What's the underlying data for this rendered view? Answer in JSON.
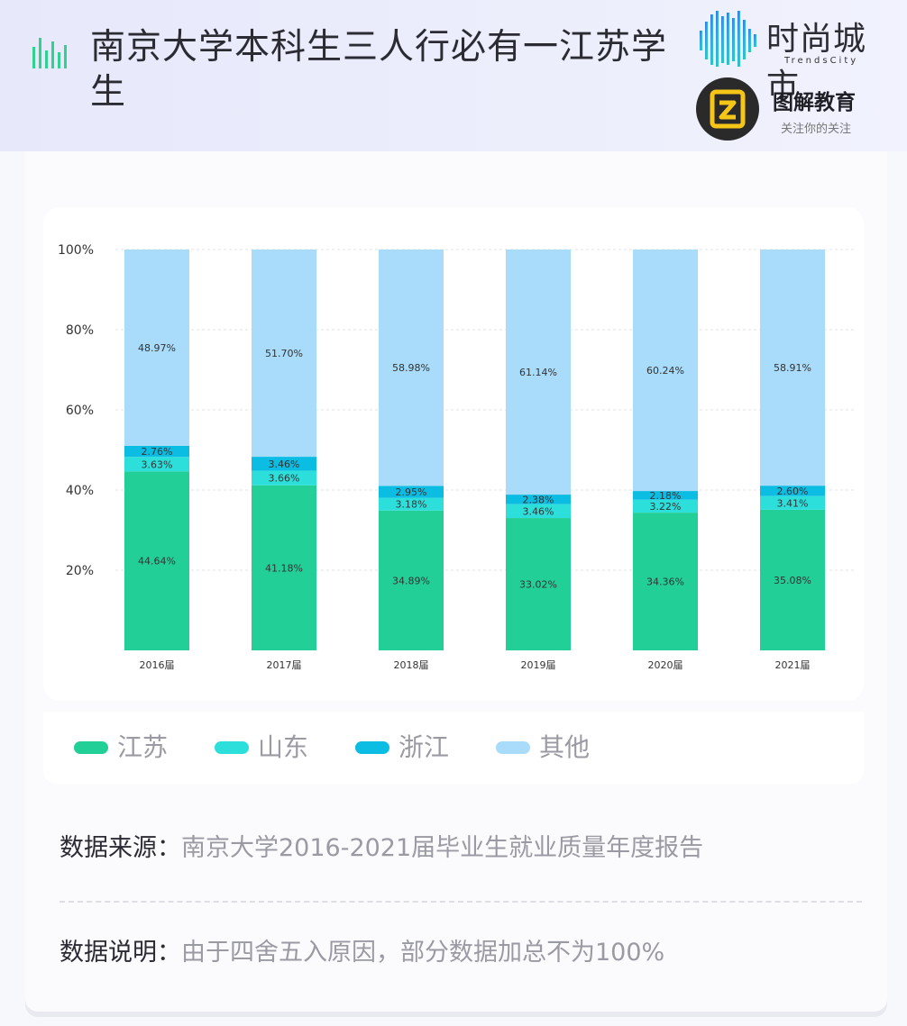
{
  "header": {
    "title": "南京大学本科生三人行必有一江苏学生",
    "brand1": {
      "name": "时尚城市",
      "sub": "TrendsCity"
    },
    "brand2": {
      "name": "图解教育",
      "sub": "关注你的关注"
    }
  },
  "colors": {
    "jiangsu": "#22cf96",
    "shandong": "#2ddfdb",
    "zhejiang": "#0cbde3",
    "other": "#a8dcfa"
  },
  "legend": [
    {
      "label": "江苏",
      "color": "#22cf96"
    },
    {
      "label": "山东",
      "color": "#2ddfdb"
    },
    {
      "label": "浙江",
      "color": "#0cbde3"
    },
    {
      "label": "其他",
      "color": "#a8dcfa"
    }
  ],
  "notes": {
    "source_key": "数据来源：",
    "source_value": "南京大学2016-2021届毕业生就业质量年度报告",
    "explain_key": "数据说明：",
    "explain_value": "由于四舍五入原因，部分数据加总不为100%"
  },
  "chart_data": {
    "type": "bar",
    "stacked": true,
    "categories": [
      "2016届",
      "2017届",
      "2018届",
      "2019届",
      "2020届",
      "2021届"
    ],
    "series": [
      {
        "name": "江苏",
        "values": [
          44.64,
          41.18,
          34.89,
          33.02,
          34.36,
          35.08
        ],
        "labels": [
          "44.64%",
          "41.18%",
          "34.89%",
          "33.02%",
          "34.36%",
          "35.08%"
        ]
      },
      {
        "name": "山东",
        "values": [
          3.63,
          3.66,
          3.18,
          3.46,
          3.22,
          3.41
        ],
        "labels": [
          "3.63%",
          "3.66%",
          "3.18%",
          "3.46%",
          "3.22%",
          "3.41%"
        ]
      },
      {
        "name": "浙江",
        "values": [
          2.76,
          3.46,
          2.95,
          2.38,
          2.18,
          2.6
        ],
        "labels": [
          "2.76%",
          "3.46%",
          "2.95%",
          "2.38%",
          "2.18%",
          "2.60%"
        ]
      },
      {
        "name": "其他",
        "values": [
          48.97,
          51.7,
          58.98,
          61.14,
          60.24,
          58.91
        ],
        "labels": [
          "48.97%",
          "51.70%",
          "58.98%",
          "61.14%",
          "60.24%",
          "58.91%"
        ]
      }
    ],
    "yticks": [
      "20%",
      "40%",
      "60%",
      "80%",
      "100%"
    ],
    "ytick_values": [
      20,
      40,
      60,
      80,
      100
    ],
    "ylim": [
      0,
      100
    ],
    "grid": true,
    "legend_position": "bottom"
  }
}
